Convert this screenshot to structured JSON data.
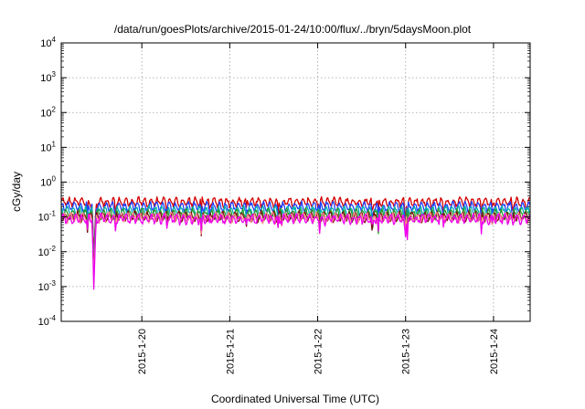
{
  "chart_data": {
    "type": "line",
    "title": "/data/run/goesPlots/archive/2015-01-24/10:00/flux/../bryn/5daysMoon.plot",
    "xlabel": "Coordinated Universal Time (UTC)",
    "ylabel": "cGy/day",
    "yscale": "log",
    "ylim": [
      0.0001,
      10000
    ],
    "xlim": [
      "2015-01-19T02:00",
      "2015-01-24T10:00"
    ],
    "y_ticks": [
      {
        "base": "10",
        "exp": "-4",
        "value": 0.0001
      },
      {
        "base": "10",
        "exp": "-3",
        "value": 0.001
      },
      {
        "base": "10",
        "exp": "-2",
        "value": 0.01
      },
      {
        "base": "10",
        "exp": "-1",
        "value": 0.1
      },
      {
        "base": "10",
        "exp": "0",
        "value": 1
      },
      {
        "base": "10",
        "exp": "1",
        "value": 10
      },
      {
        "base": "10",
        "exp": "2",
        "value": 100
      },
      {
        "base": "10",
        "exp": "3",
        "value": 1000
      },
      {
        "base": "10",
        "exp": "4",
        "value": 10000
      }
    ],
    "x_ticks": [
      {
        "label": "2015-1-20",
        "date": "2015-01-20T00:00"
      },
      {
        "label": "2015-1-21",
        "date": "2015-01-21T00:00"
      },
      {
        "label": "2015-1-22",
        "date": "2015-01-22T00:00"
      },
      {
        "label": "2015-1-23",
        "date": "2015-01-23T00:00"
      },
      {
        "label": "2015-1-24",
        "date": "2015-01-24T00:00"
      }
    ],
    "grid": true,
    "series": [
      {
        "color": "#d40000",
        "baseline": 0.27,
        "dropout_min": 0.006
      },
      {
        "color": "#1f3fff",
        "baseline": 0.2,
        "dropout_min": 0.004
      },
      {
        "color": "#00b0b0",
        "baseline": 0.15,
        "dropout_min": 0.003
      },
      {
        "color": "#2a9a2a",
        "baseline": 0.125,
        "dropout_min": 0.0025
      },
      {
        "color": "#7a1010",
        "baseline": 0.105,
        "dropout_min": 0.0015
      },
      {
        "color": "#ff8a8a",
        "baseline": 0.1,
        "dropout_min": 0.0012
      },
      {
        "color": "#ee00ee",
        "baseline": 0.09,
        "dropout_min": 0.0006
      }
    ],
    "dropout": {
      "start": "2015-01-19T10:30",
      "end": "2015-01-19T11:30",
      "min_time": "2015-01-19T10:50"
    }
  }
}
